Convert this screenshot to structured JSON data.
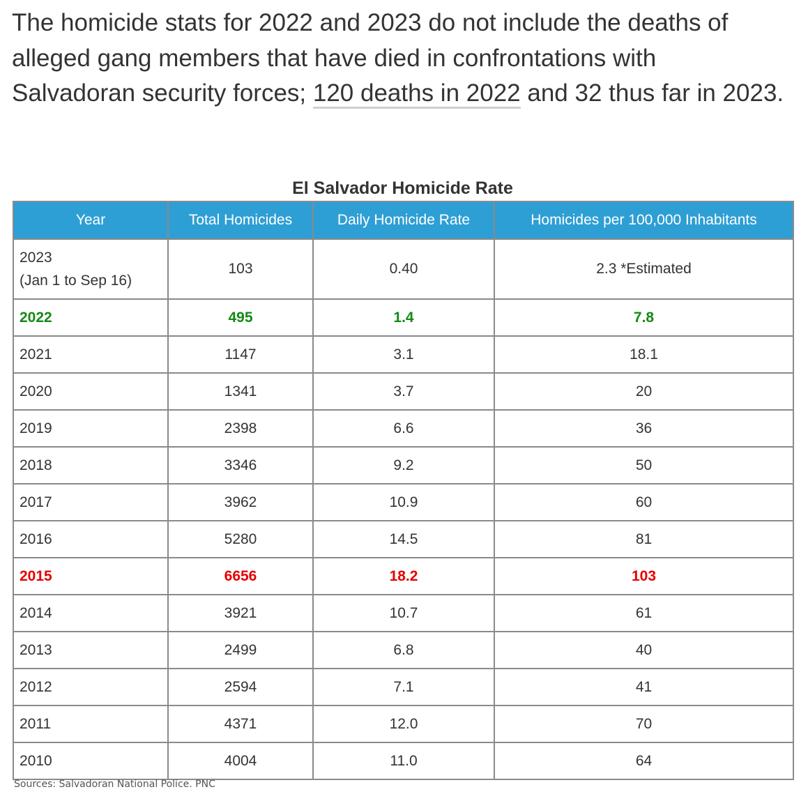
{
  "intro": {
    "before_link": "The homicide stats for 2022 and 2023 do not include the deaths of alleged gang members that have died in confrontations with Salvadoran security forces; ",
    "link_text": "120 deaths in 2022",
    "after_link": " and 32 thus far in 2023."
  },
  "table": {
    "title": "El Salvador Homicide Rate",
    "headers": [
      "Year",
      "Total Homicides",
      "Daily Homicide Rate",
      "Homicides per 100,000 Inhabitants"
    ],
    "rows": [
      {
        "year": "2023",
        "year_note": "(Jan 1 to Sep 16)",
        "total": "103",
        "daily": "0.40",
        "per100k": "2.3 *Estimated",
        "highlight": "none"
      },
      {
        "year": "2022",
        "total": "495",
        "daily": "1.4",
        "per100k": "7.8",
        "highlight": "green"
      },
      {
        "year": "2021",
        "total": "1147",
        "daily": "3.1",
        "per100k": "18.1",
        "highlight": "none"
      },
      {
        "year": "2020",
        "total": "1341",
        "daily": "3.7",
        "per100k": "20",
        "highlight": "none"
      },
      {
        "year": "2019",
        "total": "2398",
        "daily": "6.6",
        "per100k": "36",
        "highlight": "none"
      },
      {
        "year": "2018",
        "total": "3346",
        "daily": "9.2",
        "per100k": "50",
        "highlight": "none"
      },
      {
        "year": "2017",
        "total": "3962",
        "daily": "10.9",
        "per100k": "60",
        "highlight": "none"
      },
      {
        "year": "2016",
        "total": "5280",
        "daily": "14.5",
        "per100k": "81",
        "highlight": "none"
      },
      {
        "year": "2015",
        "total": "6656",
        "daily": "18.2",
        "per100k": "103",
        "highlight": "red"
      },
      {
        "year": "2014",
        "total": "3921",
        "daily": "10.7",
        "per100k": "61",
        "highlight": "none"
      },
      {
        "year": "2013",
        "total": "2499",
        "daily": "6.8",
        "per100k": "40",
        "highlight": "none"
      },
      {
        "year": "2012",
        "total": "2594",
        "daily": "7.1",
        "per100k": "41",
        "highlight": "none"
      },
      {
        "year": "2011",
        "total": "4371",
        "daily": "12.0",
        "per100k": "70",
        "highlight": "none"
      },
      {
        "year": "2010",
        "total": "4004",
        "daily": "11.0",
        "per100k": "64",
        "highlight": "none"
      }
    ]
  },
  "source": "Sources: Salvadoran National Police. PNC",
  "colors": {
    "header_bg": "#2e9fd4",
    "highlight_green": "#138a13",
    "highlight_red": "#e60000",
    "text": "#333333"
  }
}
